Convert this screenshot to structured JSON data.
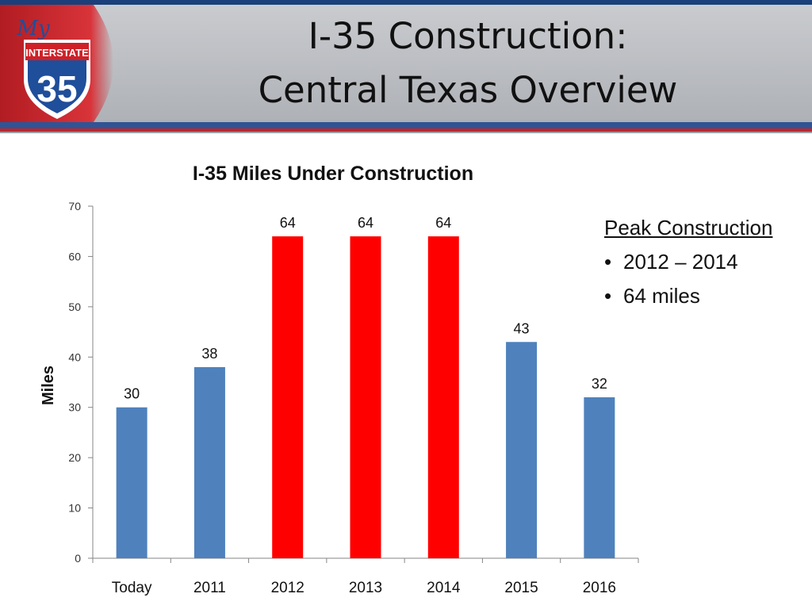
{
  "slide": {
    "title_line1": "I-35 Construction:",
    "title_line2": "Central Texas Overview",
    "logo": {
      "script_text": "My",
      "banner_text": "INTERSTATE",
      "number": "35"
    }
  },
  "chart_data": {
    "type": "bar",
    "title": "I-35 Miles Under Construction",
    "xlabel": "",
    "ylabel": "Miles",
    "categories": [
      "Today",
      "2011",
      "2012",
      "2013",
      "2014",
      "2015",
      "2016"
    ],
    "values": [
      30,
      38,
      64,
      64,
      64,
      43,
      32
    ],
    "data_labels": [
      "30",
      "38",
      "64",
      "64",
      "64",
      "43",
      "32"
    ],
    "ylim": [
      0,
      70
    ],
    "yticks": [
      0,
      10,
      20,
      30,
      40,
      50,
      60,
      70
    ],
    "grid": false,
    "colors": [
      "#4f81bd",
      "#4f81bd",
      "#ff0000",
      "#ff0000",
      "#ff0000",
      "#4f81bd",
      "#4f81bd"
    ]
  },
  "notes": {
    "heading": "Peak Construction",
    "bullets": [
      "2012 – 2014",
      "64 miles"
    ]
  }
}
